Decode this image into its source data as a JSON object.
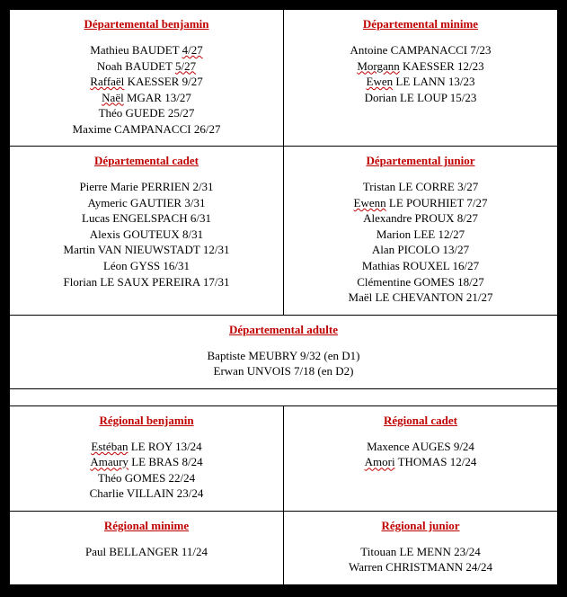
{
  "cells": {
    "dep_benjamin": {
      "title": "Départemental benjamin",
      "entries": [
        {
          "pre": "Mathieu BAUDET ",
          "sq": "4/27",
          "post": ""
        },
        {
          "pre": "Noah BAUDET ",
          "sq": "5/27",
          "post": ""
        },
        {
          "pre": "",
          "sq": "Raffaël",
          "post": " KAESSER 9/27"
        },
        {
          "pre": "",
          "sq": "Naël",
          "post": " MGAR 13/27"
        },
        {
          "pre": "Théo GUEDE 25/27",
          "sq": "",
          "post": ""
        },
        {
          "pre": "Maxime CAMPANACCI 26/27",
          "sq": "",
          "post": ""
        }
      ]
    },
    "dep_minime": {
      "title": "Départemental minime",
      "entries": [
        {
          "pre": "Antoine CAMPANACCI 7/23",
          "sq": "",
          "post": ""
        },
        {
          "pre": "",
          "sq": "Morgann",
          "post": " KAESSER 12/23"
        },
        {
          "pre": "",
          "sq": "Ewen",
          "post": " LE LANN 13/23"
        },
        {
          "pre": "Dorian LE LOUP 15/23",
          "sq": "",
          "post": ""
        }
      ]
    },
    "dep_cadet": {
      "title": "Départemental cadet",
      "entries": [
        {
          "pre": "Pierre Marie PERRIEN 2/31",
          "sq": "",
          "post": ""
        },
        {
          "pre": "Aymeric GAUTIER 3/31",
          "sq": "",
          "post": ""
        },
        {
          "pre": "Lucas ENGELSPACH 6/31",
          "sq": "",
          "post": ""
        },
        {
          "pre": "Alexis GOUTEUX 8/31",
          "sq": "",
          "post": ""
        },
        {
          "pre": "Martin VAN NIEUWSTADT 12/31",
          "sq": "",
          "post": ""
        },
        {
          "pre": "Léon GYSS 16/31",
          "sq": "",
          "post": ""
        },
        {
          "pre": "Florian LE SAUX PEREIRA 17/31",
          "sq": "",
          "post": ""
        }
      ]
    },
    "dep_junior": {
      "title": "Départemental junior",
      "entries": [
        {
          "pre": "Tristan LE CORRE 3/27",
          "sq": "",
          "post": ""
        },
        {
          "pre": "",
          "sq": "Ewenn",
          "post": " LE POURHIET 7/27"
        },
        {
          "pre": "Alexandre PROUX 8/27",
          "sq": "",
          "post": ""
        },
        {
          "pre": "Marion LEE 12/27",
          "sq": "",
          "post": ""
        },
        {
          "pre": "Alan PICOLO 13/27",
          "sq": "",
          "post": ""
        },
        {
          "pre": "Mathias ROUXEL 16/27",
          "sq": "",
          "post": ""
        },
        {
          "pre": "Clémentine GOMES 18/27",
          "sq": "",
          "post": ""
        },
        {
          "pre": "Maël LE CHEVANTON 21/27",
          "sq": "",
          "post": ""
        }
      ]
    },
    "dep_adulte": {
      "title": "Départemental adulte",
      "entries": [
        {
          "pre": "Baptiste MEUBRY 9/32 (en D1)",
          "sq": "",
          "post": ""
        },
        {
          "pre": "Erwan UNVOIS 7/18 (en D2)",
          "sq": "",
          "post": ""
        }
      ]
    },
    "reg_benjamin": {
      "title": "Régional benjamin",
      "entries": [
        {
          "pre": "",
          "sq": "Estéban",
          "post": " LE ROY 13/24"
        },
        {
          "pre": "",
          "sq": "Amaury",
          "post": " LE BRAS 8/24"
        },
        {
          "pre": "Théo GOMES 22/24",
          "sq": "",
          "post": ""
        },
        {
          "pre": "Charlie VILLAIN 23/24",
          "sq": "",
          "post": ""
        }
      ]
    },
    "reg_cadet": {
      "title": "Régional cadet",
      "entries": [
        {
          "pre": "Maxence AUGES 9/24",
          "sq": "",
          "post": ""
        },
        {
          "pre": "",
          "sq": "Amori",
          "post": " THOMAS 12/24"
        }
      ]
    },
    "reg_minime": {
      "title": "Régional minime",
      "entries": [
        {
          "pre": "Paul BELLANGER 11/24",
          "sq": "",
          "post": ""
        }
      ]
    },
    "reg_junior": {
      "title": "Régional junior",
      "entries": [
        {
          "pre": "Titouan LE MENN 23/24",
          "sq": "",
          "post": ""
        },
        {
          "pre": "Warren CHRISTMANN 24/24",
          "sq": "",
          "post": ""
        }
      ]
    }
  }
}
